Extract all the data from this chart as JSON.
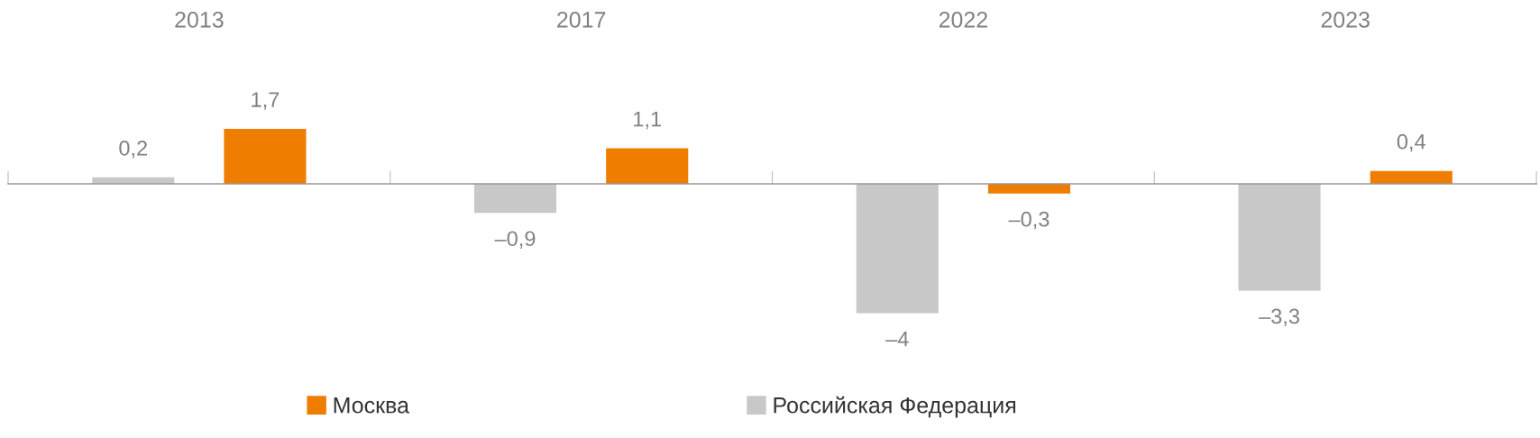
{
  "chart_data": {
    "type": "bar",
    "categories": [
      "2013",
      "2017",
      "2022",
      "2023"
    ],
    "series": [
      {
        "name": "Российская Федерация",
        "color": "#c8c8c8",
        "values": [
          0.2,
          -0.9,
          -4,
          -3.3
        ],
        "value_labels": [
          "0,2",
          "–0,9",
          "–4",
          "–3,3"
        ]
      },
      {
        "name": "Москва",
        "color": "#ef7d00",
        "values": [
          1.7,
          1.1,
          -0.3,
          0.4
        ],
        "value_labels": [
          "1,7",
          "1,1",
          "–0,3",
          "0,4"
        ]
      }
    ],
    "tick_labels": "x",
    "grid": false,
    "legend": "bottom"
  }
}
